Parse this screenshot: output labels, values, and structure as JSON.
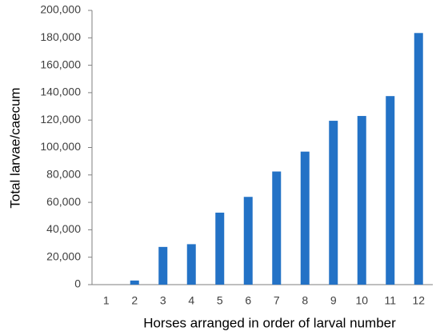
{
  "chart_data": {
    "type": "bar",
    "x_label": "Horses arranged in order of larval number",
    "y_label": "Total larvae/caecum",
    "categories": [
      "1",
      "2",
      "3",
      "4",
      "5",
      "6",
      "7",
      "8",
      "9",
      "10",
      "11",
      "12"
    ],
    "values": [
      0,
      3000,
      27500,
      29500,
      52500,
      64000,
      82500,
      97000,
      119500,
      123000,
      137500,
      183500
    ],
    "color": "#2372c6",
    "ylim": [
      0,
      200000
    ],
    "yticks": [
      0,
      {
        "value": 20000,
        "label": "20,000"
      },
      {
        "value": 40000,
        "label": "40,000"
      },
      {
        "value": 60000,
        "label": "60,000"
      },
      {
        "value": 80000,
        "label": "80,000"
      },
      {
        "value": 100000,
        "label": "100,000"
      },
      {
        "value": 120000,
        "label": "120,000"
      },
      {
        "value": 140000,
        "label": "140,000"
      },
      {
        "value": 160000,
        "label": "160,000"
      },
      {
        "value": 180000,
        "label": "180,000"
      },
      {
        "value": 200000,
        "label": "200,000"
      }
    ],
    "grid": false
  }
}
